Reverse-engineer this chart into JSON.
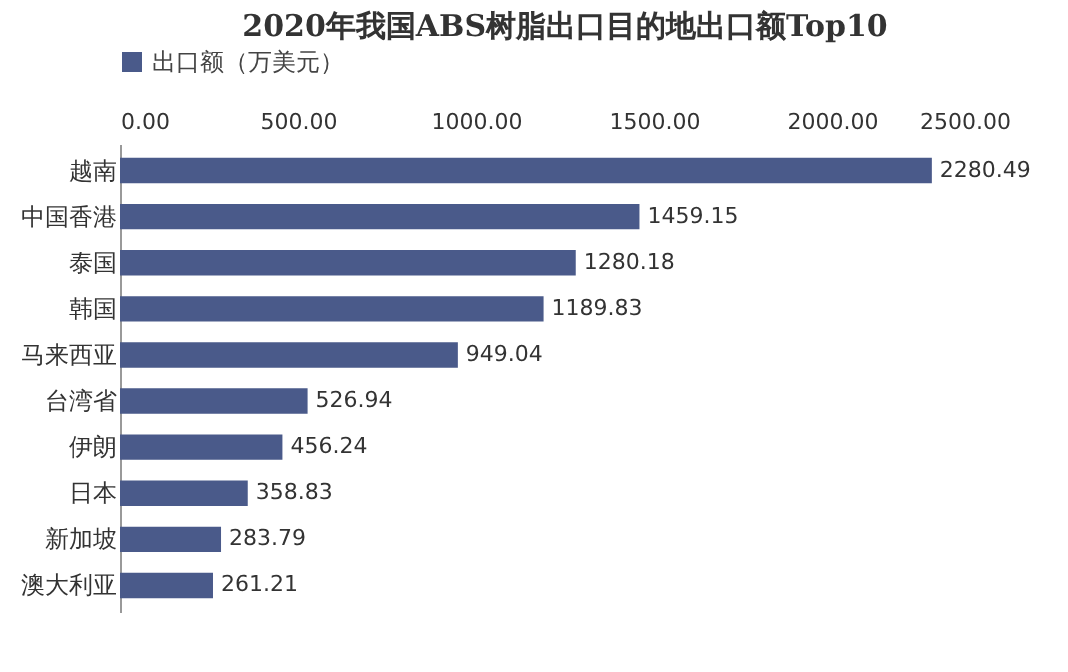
{
  "chart_data": {
    "type": "bar",
    "orientation": "horizontal",
    "title": "2020年我国ABS树脂出口目的地出口额Top10",
    "categories": [
      "越南",
      "中国香港",
      "泰国",
      "韩国",
      "马来西亚",
      "台湾省",
      "伊朗",
      "日本",
      "新加坡",
      "澳大利亚"
    ],
    "series": [
      {
        "name": "出口额（万美元）",
        "color": "#4a5a8a",
        "values": [
          2280.49,
          1459.15,
          1280.18,
          1189.83,
          949.04,
          526.94,
          456.24,
          358.83,
          283.79,
          261.21
        ]
      }
    ],
    "xlim": [
      0,
      2500
    ],
    "xticks": [
      {
        "value": 0,
        "label": "0.00"
      },
      {
        "value": 500,
        "label": "500.00"
      },
      {
        "value": 1000,
        "label": "1000.00"
      },
      {
        "value": 1500,
        "label": "1500.00"
      },
      {
        "value": 2000,
        "label": "2000.00"
      },
      {
        "value": 2500,
        "label": "2500.00"
      }
    ],
    "data_labels": true,
    "legend": "top",
    "grid": false
  }
}
